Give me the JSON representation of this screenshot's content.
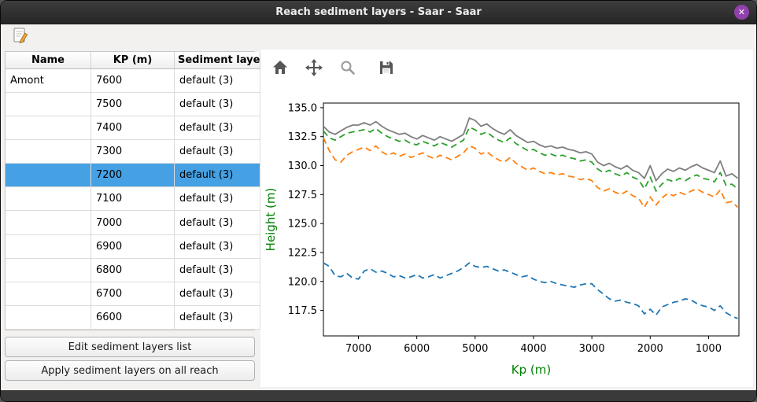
{
  "window": {
    "title": "Reach sediment layers - Saar - Saar",
    "close_glyph": "✕"
  },
  "colors": {
    "titlebar_bg": "#2f2f2f",
    "close_button": "#9141ac",
    "selection_blue": "#45a1e4",
    "axis_label_green": "#008000",
    "series_grey": "#7f7f7f",
    "series_green": "#2ca02c",
    "series_orange": "#ff7f0e",
    "series_blue": "#1f77b4"
  },
  "icons": {
    "edit": "edit-icon",
    "home": "home-icon",
    "pan": "move-icon",
    "zoom": "zoom-icon",
    "save": "save-icon",
    "scroll_up": "▲",
    "scroll_down": "▼"
  },
  "table": {
    "headers": [
      "Name",
      "KP (m)",
      "Sediment layers"
    ],
    "rows": [
      {
        "name": "Amont",
        "kp": "7600",
        "layers": "default (3)",
        "selected": false
      },
      {
        "name": "",
        "kp": "7500",
        "layers": "default (3)",
        "selected": false
      },
      {
        "name": "",
        "kp": "7400",
        "layers": "default (3)",
        "selected": false
      },
      {
        "name": "",
        "kp": "7300",
        "layers": "default (3)",
        "selected": false
      },
      {
        "name": "",
        "kp": "7200",
        "layers": "default (3)",
        "selected": true
      },
      {
        "name": "",
        "kp": "7100",
        "layers": "default (3)",
        "selected": false
      },
      {
        "name": "",
        "kp": "7000",
        "layers": "default (3)",
        "selected": false
      },
      {
        "name": "",
        "kp": "6900",
        "layers": "default (3)",
        "selected": false
      },
      {
        "name": "",
        "kp": "6800",
        "layers": "default (3)",
        "selected": false
      },
      {
        "name": "",
        "kp": "6700",
        "layers": "default (3)",
        "selected": false
      },
      {
        "name": "",
        "kp": "6600",
        "layers": "default (3)",
        "selected": false
      }
    ]
  },
  "buttons": {
    "edit_list": "Edit sediment layers list",
    "apply_all": "Apply sediment layers on all reach"
  },
  "chart_data": {
    "type": "line",
    "title": "",
    "xlabel": "Kp (m)",
    "ylabel": "Height (m)",
    "label_color": "#008000",
    "grid": false,
    "legend": "none",
    "x_axis_reversed": true,
    "xlim": [
      7600,
      480
    ],
    "ylim": [
      115.3,
      135.4
    ],
    "xticks": [
      7000,
      6000,
      5000,
      4000,
      3000,
      2000,
      1000
    ],
    "yticks": [
      117.5,
      120.0,
      122.5,
      125.0,
      127.5,
      130.0,
      132.5,
      135.0
    ],
    "x": [
      7600,
      7500,
      7400,
      7300,
      7200,
      7100,
      7000,
      6900,
      6800,
      6700,
      6600,
      6500,
      6400,
      6300,
      6200,
      6100,
      6000,
      5900,
      5800,
      5700,
      5600,
      5500,
      5400,
      5300,
      5200,
      5100,
      5000,
      4900,
      4800,
      4700,
      4600,
      4500,
      4400,
      4300,
      4200,
      4100,
      4000,
      3900,
      3800,
      3700,
      3600,
      3500,
      3400,
      3300,
      3200,
      3100,
      3000,
      2900,
      2800,
      2700,
      2600,
      2500,
      2400,
      2300,
      2200,
      2100,
      2000,
      1900,
      1800,
      1700,
      1600,
      1500,
      1400,
      1300,
      1200,
      1100,
      1000,
      900,
      800,
      700,
      600,
      500
    ],
    "series": [
      {
        "name": "grey-solid-line",
        "color": "#7f7f7f",
        "dash": false,
        "values": [
          133.4,
          132.9,
          132.7,
          133.0,
          133.3,
          133.5,
          133.5,
          133.7,
          133.5,
          133.8,
          133.4,
          133.1,
          132.9,
          132.7,
          132.8,
          132.5,
          132.3,
          132.6,
          132.4,
          132.2,
          132.5,
          132.3,
          132.1,
          132.4,
          132.7,
          134.1,
          133.9,
          133.4,
          133.6,
          133.2,
          132.9,
          132.7,
          133.1,
          132.6,
          132.3,
          132.0,
          132.1,
          131.8,
          131.6,
          131.7,
          131.5,
          131.6,
          131.4,
          131.3,
          131.1,
          131.2,
          131.0,
          130.3,
          130.0,
          130.2,
          129.9,
          129.7,
          130.0,
          129.6,
          129.4,
          128.9,
          130.0,
          128.7,
          129.3,
          129.7,
          129.5,
          129.8,
          129.6,
          129.9,
          130.1,
          129.8,
          129.6,
          129.4,
          130.4,
          129.1,
          129.3,
          128.9
        ]
      },
      {
        "name": "green-dashed-line",
        "color": "#2ca02c",
        "dash": true,
        "values": [
          133.0,
          132.4,
          132.2,
          132.5,
          132.8,
          132.9,
          133.0,
          133.1,
          132.9,
          133.2,
          132.8,
          132.5,
          132.3,
          132.1,
          132.2,
          131.9,
          131.8,
          132.1,
          131.9,
          131.7,
          132.0,
          131.8,
          131.6,
          131.9,
          132.2,
          133.3,
          133.1,
          132.7,
          132.9,
          132.5,
          132.2,
          132.0,
          132.4,
          131.9,
          131.6,
          131.3,
          131.4,
          131.1,
          130.9,
          131.0,
          130.8,
          130.9,
          130.7,
          130.6,
          130.4,
          130.5,
          130.3,
          129.7,
          129.4,
          129.6,
          129.3,
          129.1,
          129.4,
          129.0,
          128.8,
          128.0,
          129.0,
          127.8,
          128.4,
          128.8,
          128.6,
          128.9,
          128.7,
          129.0,
          129.2,
          128.9,
          128.8,
          128.6,
          129.4,
          128.3,
          128.4,
          128.0
        ]
      },
      {
        "name": "orange-dashed-line",
        "color": "#ff7f0e",
        "dash": true,
        "values": [
          132.4,
          131.3,
          130.5,
          130.3,
          130.9,
          131.2,
          131.4,
          131.6,
          131.3,
          131.7,
          131.2,
          130.9,
          131.1,
          130.8,
          131.0,
          130.7,
          130.9,
          131.1,
          130.8,
          130.6,
          130.9,
          130.7,
          130.5,
          130.8,
          131.1,
          131.7,
          131.5,
          131.0,
          131.2,
          130.8,
          130.5,
          130.3,
          130.7,
          130.2,
          129.9,
          129.6,
          129.8,
          129.5,
          129.3,
          129.4,
          129.2,
          129.3,
          129.1,
          129.0,
          128.8,
          128.9,
          128.7,
          128.1,
          127.8,
          128.0,
          127.7,
          127.5,
          127.8,
          127.4,
          127.2,
          126.4,
          127.3,
          126.6,
          127.2,
          127.6,
          127.4,
          127.7,
          127.5,
          127.8,
          128.0,
          127.7,
          127.5,
          127.3,
          127.9,
          126.8,
          126.9,
          126.4
        ]
      },
      {
        "name": "blue-dashed-line",
        "color": "#1f77b4",
        "dash": true,
        "values": [
          121.6,
          121.3,
          120.5,
          120.4,
          120.7,
          120.3,
          120.2,
          120.9,
          121.1,
          120.8,
          120.9,
          120.7,
          120.4,
          120.5,
          120.3,
          120.4,
          120.6,
          120.3,
          120.4,
          120.6,
          120.3,
          120.5,
          120.7,
          120.9,
          121.2,
          121.6,
          121.3,
          121.2,
          121.3,
          121.1,
          120.9,
          121.0,
          120.8,
          120.6,
          120.4,
          120.5,
          120.2,
          120.0,
          119.9,
          120.0,
          119.8,
          119.7,
          119.6,
          119.5,
          119.7,
          119.8,
          119.8,
          119.3,
          118.9,
          118.5,
          118.3,
          118.4,
          118.2,
          118.1,
          117.9,
          117.2,
          117.6,
          117.1,
          117.8,
          118.0,
          118.2,
          118.3,
          118.5,
          118.4,
          118.1,
          117.9,
          117.8,
          117.5,
          117.9,
          117.3,
          117.0,
          116.8
        ]
      }
    ]
  }
}
